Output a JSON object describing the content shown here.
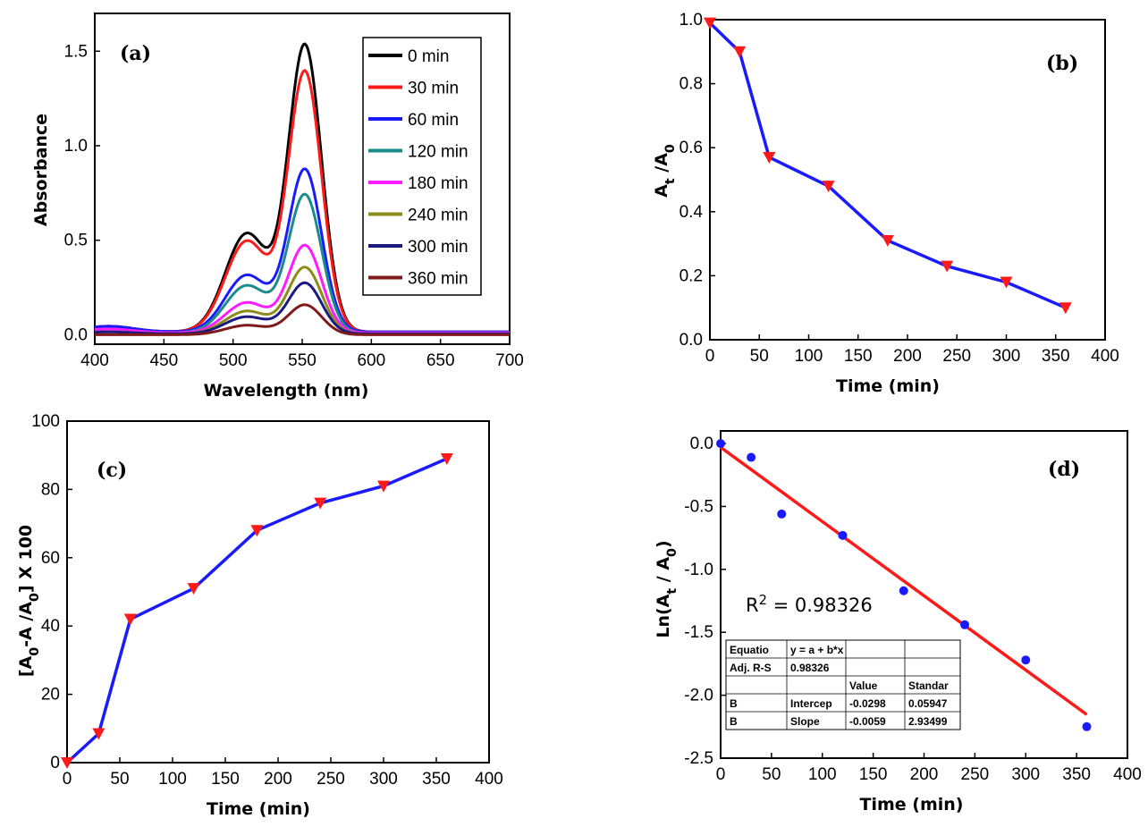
{
  "chart_data": [
    {
      "panel": "(a)",
      "type": "line",
      "xlabel": "Wavelength (nm)",
      "ylabel": "Absorbance",
      "xlim": [
        400,
        700
      ],
      "ylim": [
        -0.05,
        1.7
      ],
      "xticks": [
        "400",
        "450",
        "500",
        "550",
        "600",
        "650",
        "700"
      ],
      "yticks": [
        "0.0",
        "0.5",
        "1.0",
        "1.5"
      ],
      "legend_position": "top-right",
      "series": [
        {
          "name": "0 min",
          "color": "#000000",
          "peak": 1.64,
          "shoulder": 0.52,
          "base": 0.03
        },
        {
          "name": "30 min",
          "color": "#ff1a1a",
          "peak": 1.49,
          "shoulder": 0.48,
          "base": 0.03
        },
        {
          "name": "60 min",
          "color": "#1a1aff",
          "peak": 0.93,
          "shoulder": 0.3,
          "base": 0.03
        },
        {
          "name": "120 min",
          "color": "#1a8c8c",
          "peak": 0.79,
          "shoulder": 0.25,
          "base": 0.02
        },
        {
          "name": "180 min",
          "color": "#ff1aff",
          "peak": 0.5,
          "shoulder": 0.16,
          "base": 0.02
        },
        {
          "name": "240 min",
          "color": "#8c8c1a",
          "peak": 0.38,
          "shoulder": 0.12,
          "base": 0.01
        },
        {
          "name": "300 min",
          "color": "#1a1a80",
          "peak": 0.29,
          "shoulder": 0.09,
          "base": 0.01
        },
        {
          "name": "360 min",
          "color": "#801a1a",
          "peak": 0.17,
          "shoulder": 0.05,
          "base": 0.0
        }
      ]
    },
    {
      "panel": "(b)",
      "type": "line",
      "xlabel": "Time (min)",
      "ylabel": "At /A0",
      "xlim": [
        0,
        400
      ],
      "ylim": [
        0,
        1.0
      ],
      "xticks": [
        "0",
        "50",
        "100",
        "150",
        "200",
        "250",
        "300",
        "350",
        "400"
      ],
      "yticks": [
        "0.0",
        "0.2",
        "0.4",
        "0.6",
        "0.8",
        "1.0"
      ],
      "x": [
        0,
        30,
        60,
        120,
        180,
        240,
        300,
        360
      ],
      "y": [
        0.99,
        0.9,
        0.57,
        0.48,
        0.31,
        0.23,
        0.18,
        0.1
      ],
      "line_color": "#1a1aff",
      "marker_color": "#ff1a1a"
    },
    {
      "panel": "(c)",
      "type": "line",
      "xlabel": "Time (min)",
      "ylabel": "[A0-A /A0] X 100",
      "xlim": [
        0,
        400
      ],
      "ylim": [
        0,
        100
      ],
      "xticks": [
        "0",
        "50",
        "100",
        "150",
        "200",
        "250",
        "300",
        "350",
        "400"
      ],
      "yticks": [
        "0",
        "20",
        "40",
        "60",
        "80",
        "100"
      ],
      "x": [
        0,
        30,
        60,
        120,
        180,
        240,
        300,
        360
      ],
      "y": [
        0,
        8.5,
        42,
        51,
        68,
        76,
        81,
        89
      ],
      "line_color": "#1a1aff",
      "marker_color": "#ff1a1a"
    },
    {
      "panel": "(d)",
      "type": "scatter",
      "xlabel": "Time (min)",
      "ylabel": "Ln(At / A0)",
      "xlim": [
        0,
        400
      ],
      "ylim": [
        -2.5,
        0.1
      ],
      "xticks": [
        "0",
        "50",
        "100",
        "150",
        "200",
        "250",
        "300",
        "350",
        "400"
      ],
      "yticks": [
        "0.0",
        "-0.5",
        "-1.0",
        "-1.5",
        "-2.0",
        "-2.5"
      ],
      "x": [
        0,
        30,
        60,
        120,
        180,
        240,
        300,
        360
      ],
      "y": [
        0.0,
        -0.11,
        -0.56,
        -0.73,
        -1.17,
        -1.44,
        -1.72,
        -2.25
      ],
      "fit": {
        "intercept": -0.0298,
        "slope": -0.0059,
        "color": "#ff1a1a"
      },
      "marker_color": "#1a1aff",
      "r2_label": "R",
      "r2_sup": "2",
      "r2_value": " = 0.98326",
      "table": [
        [
          "Equatio",
          "y = a + b*x",
          ""
        ],
        [
          "Adj. R-S",
          "0.98326",
          ""
        ],
        [
          "",
          "",
          "Value",
          "Standar"
        ],
        [
          "B",
          "Intercep",
          "-0.0298",
          "0.05947"
        ],
        [
          "B",
          "Slope",
          "-0.0059",
          "2.93499"
        ]
      ]
    }
  ]
}
